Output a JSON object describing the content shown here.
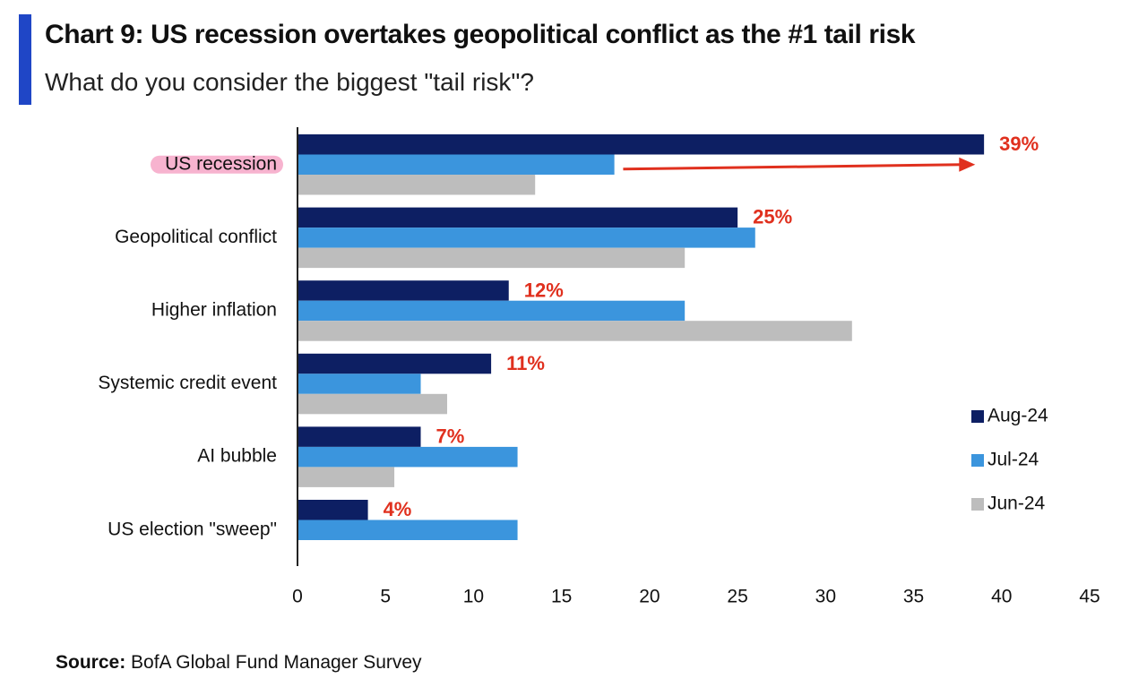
{
  "header": {
    "title": "Chart 9: US recession overtakes geopolitical conflict as the #1 tail risk",
    "subtitle": "What do you consider the biggest \"tail risk\"?"
  },
  "footer": {
    "source_label": "Source:",
    "source_text": "BofA Global Fund Manager Survey"
  },
  "colors": {
    "aug": "#0d1f63",
    "jul": "#3b95dd",
    "jun": "#bdbdbd",
    "annotation": "#e0301e",
    "highlight": "#f7b3cf",
    "accent": "#1f46c6"
  },
  "chart_data": {
    "type": "bar",
    "orientation": "horizontal",
    "categories": [
      "US recession",
      "Geopolitical conflict",
      "Higher inflation",
      "Systemic credit event",
      "AI bubble",
      "US election \"sweep\""
    ],
    "series": [
      {
        "name": "Aug-24",
        "values": [
          39,
          25,
          12,
          11,
          7,
          4
        ]
      },
      {
        "name": "Jul-24",
        "values": [
          18,
          26,
          22,
          7,
          12.5,
          12.5
        ]
      },
      {
        "name": "Jun-24",
        "values": [
          13.5,
          22,
          31.5,
          8.5,
          5.5,
          null
        ]
      }
    ],
    "data_labels": [
      "39%",
      "25%",
      "12%",
      "11%",
      "7%",
      "4%"
    ],
    "xlim": [
      0,
      45
    ],
    "xticks": [
      "0",
      "5",
      "10",
      "15",
      "20",
      "25",
      "30",
      "35",
      "40",
      "45"
    ],
    "highlighted_category": "US recession",
    "annotation_arrow": {
      "category": "US recession",
      "from_value": 18.5,
      "to_value": 38.5
    },
    "legend_position": "right",
    "grid": false
  }
}
